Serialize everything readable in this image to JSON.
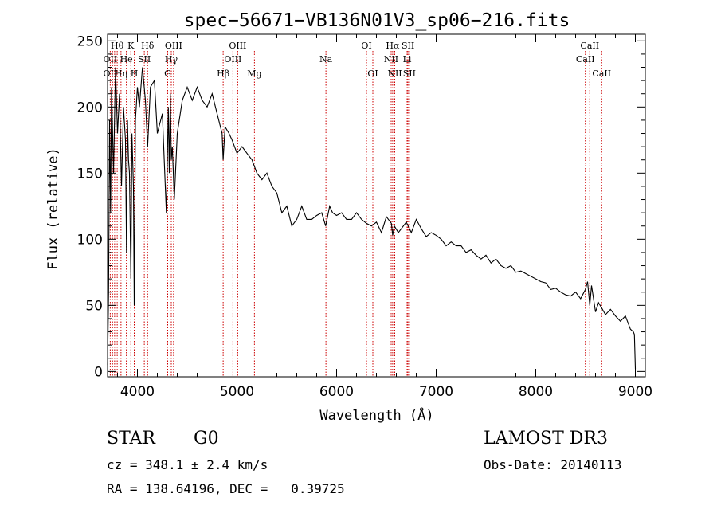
{
  "chart_data": {
    "type": "line",
    "title": "spec−56671−VB136N01V3_sp06−216.fits",
    "xlabel": "Wavelength (Å)",
    "ylabel": "Flux (relative)",
    "xlim": [
      3700,
      9100
    ],
    "ylim": [
      -4,
      255
    ],
    "xticks": [
      4000,
      5000,
      6000,
      7000,
      8000,
      9000
    ],
    "yticks": [
      0,
      50,
      100,
      150,
      200,
      250
    ],
    "series": [
      {
        "name": "flux",
        "x": [
          3700,
          3710,
          3720,
          3730,
          3740,
          3760,
          3780,
          3800,
          3820,
          3840,
          3860,
          3880,
          3890,
          3900,
          3910,
          3920,
          3934,
          3945,
          3960,
          3968,
          3980,
          4000,
          4020,
          4050,
          4080,
          4102,
          4130,
          4170,
          4200,
          4250,
          4290,
          4310,
          4320,
          4330,
          4340,
          4350,
          4370,
          4400,
          4450,
          4500,
          4550,
          4600,
          4650,
          4700,
          4750,
          4800,
          4850,
          4861,
          4880,
          4920,
          4950,
          5000,
          5050,
          5100,
          5150,
          5200,
          5250,
          5300,
          5350,
          5400,
          5450,
          5500,
          5550,
          5600,
          5650,
          5700,
          5750,
          5800,
          5850,
          5890,
          5930,
          5960,
          6000,
          6050,
          6100,
          6150,
          6200,
          6250,
          6300,
          6350,
          6400,
          6450,
          6500,
          6550,
          6563,
          6580,
          6620,
          6650,
          6700,
          6750,
          6800,
          6850,
          6900,
          6950,
          7000,
          7050,
          7100,
          7150,
          7200,
          7250,
          7300,
          7350,
          7400,
          7450,
          7500,
          7550,
          7600,
          7650,
          7700,
          7750,
          7800,
          7850,
          7900,
          7950,
          8000,
          8050,
          8100,
          8150,
          8200,
          8250,
          8300,
          8350,
          8400,
          8450,
          8498,
          8520,
          8542,
          8560,
          8600,
          8630,
          8662,
          8700,
          8750,
          8800,
          8850,
          8900,
          8950,
          8980,
          8990,
          9000
        ],
        "values": [
          5,
          60,
          190,
          120,
          215,
          150,
          230,
          180,
          210,
          140,
          200,
          175,
          90,
          190,
          160,
          150,
          70,
          180,
          140,
          50,
          190,
          215,
          200,
          230,
          205,
          170,
          215,
          220,
          180,
          195,
          120,
          200,
          150,
          210,
          160,
          170,
          130,
          180,
          205,
          215,
          205,
          215,
          205,
          200,
          210,
          195,
          180,
          160,
          185,
          180,
          175,
          165,
          170,
          165,
          160,
          150,
          145,
          150,
          140,
          135,
          120,
          125,
          110,
          115,
          125,
          115,
          115,
          118,
          120,
          110,
          125,
          120,
          118,
          120,
          115,
          115,
          120,
          115,
          112,
          110,
          113,
          105,
          117,
          112,
          103,
          110,
          105,
          108,
          113,
          105,
          115,
          108,
          102,
          105,
          103,
          100,
          95,
          98,
          95,
          95,
          90,
          92,
          88,
          85,
          88,
          82,
          85,
          80,
          78,
          80,
          75,
          76,
          74,
          72,
          70,
          68,
          67,
          62,
          63,
          60,
          58,
          57,
          60,
          55,
          62,
          68,
          50,
          65,
          45,
          52,
          48,
          43,
          47,
          42,
          38,
          42,
          32,
          30,
          28,
          2
        ]
      }
    ],
    "emission_lines": [
      {
        "label": "Hδ",
        "x": 4102,
        "row": 1
      },
      {
        "label": "OIII",
        "x": 4363,
        "row": 1
      },
      {
        "label": "Hγ",
        "x": 4340,
        "row": 2
      },
      {
        "label": "OIII",
        "x": 4959,
        "row": 2
      },
      {
        "label": "OIII",
        "x": 5007,
        "row": 1
      },
      {
        "label": "Hβ",
        "x": 4861,
        "row": 3
      },
      {
        "label": "Mg",
        "x": 5175,
        "row": 3
      },
      {
        "label": "Na",
        "x": 5893,
        "row": 2
      },
      {
        "label": "OI",
        "x": 6300,
        "row": 1
      },
      {
        "label": "OI",
        "x": 6364,
        "row": 3
      },
      {
        "label": "Hα",
        "x": 6563,
        "row": 1
      },
      {
        "label": "NII",
        "x": 6548,
        "row": 2
      },
      {
        "label": "NII",
        "x": 6584,
        "row": 3
      },
      {
        "label": "SII",
        "x": 6717,
        "row": 1
      },
      {
        "label": "Li",
        "x": 6708,
        "row": 2
      },
      {
        "label": "SII",
        "x": 6731,
        "row": 3
      },
      {
        "label": "CaII",
        "x": 8542,
        "row": 1
      },
      {
        "label": "CaII",
        "x": 8498,
        "row": 2
      },
      {
        "label": "CaII",
        "x": 8662,
        "row": 3
      }
    ],
    "crowded_labels": [
      {
        "label": "Hθ",
        "row": 1,
        "anchor": 3797
      },
      {
        "label": "K",
        "row": 1,
        "anchor": 3934
      },
      {
        "label": "OII",
        "row": 2,
        "anchor": 3727
      },
      {
        "label": "He",
        "row": 2,
        "anchor": 3889
      },
      {
        "label": "SII",
        "row": 2,
        "anchor": 4069
      },
      {
        "label": "OII",
        "row": 3,
        "anchor": 3727
      },
      {
        "label": "Hη",
        "row": 3,
        "anchor": 3835
      },
      {
        "label": "H",
        "row": 3,
        "anchor": 3968
      },
      {
        "label": "G",
        "row": 3,
        "anchor": 4304
      }
    ],
    "absorption_lines_x": [
      3727,
      3750,
      3771,
      3797,
      3835,
      3889,
      3934,
      3968,
      4069,
      4304
    ]
  },
  "info": {
    "object_class": "STAR",
    "subclass": "G0",
    "survey": "LAMOST DR3",
    "cz": "cz = 348.1 ± 2.4 km/s",
    "obs_date": "Obs-Date: 20140113",
    "coords": "RA = 138.64196, DEC =   0.39725"
  },
  "colors": {
    "axis": "#000000",
    "spectrum": "#000000",
    "line_marker": "#cc0000",
    "background": "#ffffff"
  }
}
